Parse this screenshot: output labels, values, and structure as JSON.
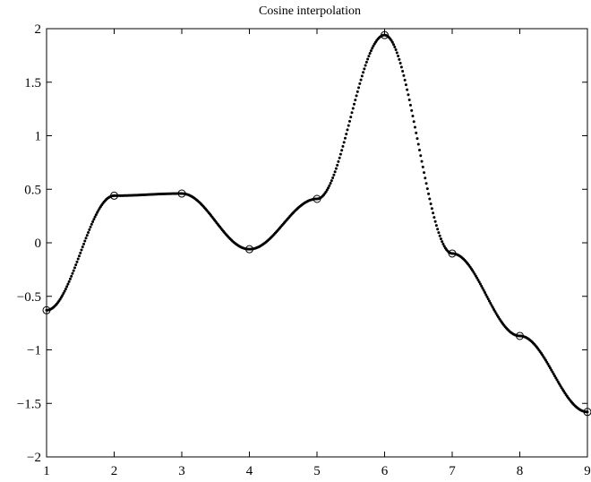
{
  "chart_data": {
    "type": "scatter",
    "title": "Cosine interpolation",
    "xlabel": "",
    "ylabel": "",
    "xlim": [
      1,
      9
    ],
    "ylim": [
      -2,
      2
    ],
    "grid": false,
    "x_ticks": [
      "1",
      "2",
      "3",
      "4",
      "5",
      "6",
      "7",
      "8",
      "9"
    ],
    "y_ticks": [
      "2",
      "1.5",
      "1",
      "0.5",
      "0",
      "−0.5",
      "−1",
      "−1.5",
      "−2"
    ],
    "series": [
      {
        "style": "dotted line (cosine-interpolated curve)",
        "color": "#000000",
        "interpolation": "cosine",
        "samples_per_segment": 60
      },
      {
        "style": "open circle markers (data points)",
        "color": "#000000",
        "x": [
          1,
          2,
          3,
          4,
          5,
          6,
          7,
          8,
          9
        ],
        "y": [
          -0.63,
          0.44,
          0.46,
          -0.06,
          0.41,
          1.94,
          -0.1,
          -0.87,
          -1.58
        ]
      }
    ]
  }
}
